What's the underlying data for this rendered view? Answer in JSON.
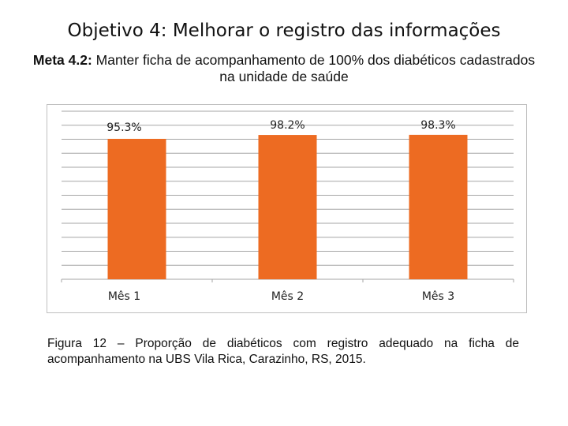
{
  "slide": {
    "title": "Objetivo 4: Melhorar o registro das informações",
    "subtitle_prefix": "Meta 4.2:",
    "subtitle_text": " Manter ficha de acompanhamento de 100% dos diabéticos cadastrados na unidade de saúde",
    "caption": "Figura 12 – Proporção de diabéticos com registro adequado na ficha de acompanhamento na UBS Vila Rica, Carazinho, RS, 2015."
  },
  "colors": {
    "bar": "#ED6B22",
    "gridline": "#a6a6a6"
  },
  "chart_data": {
    "type": "bar",
    "categories": [
      "Mês 1",
      "Mês 2",
      "Mês 3"
    ],
    "values": [
      95.3,
      98.2,
      98.3
    ],
    "data_labels": [
      "95.3%",
      "98.2%",
      "98.3%"
    ],
    "title": "",
    "xlabel": "",
    "ylabel": "",
    "ylim": [
      0,
      100
    ],
    "grid": true,
    "legend": "none"
  }
}
